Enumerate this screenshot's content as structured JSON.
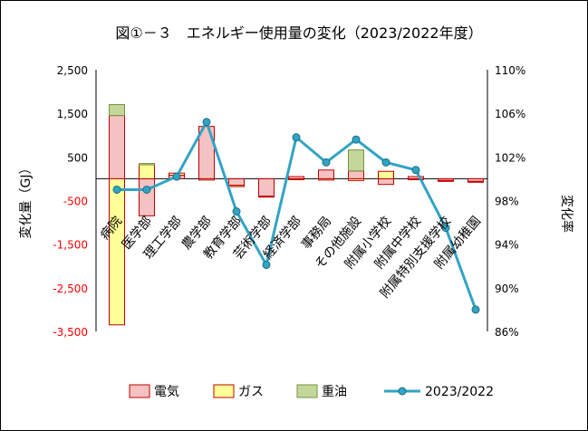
{
  "chart_data": {
    "type": "bar",
    "title": "図①－３　エネルギー使用量の変化（2023/2022年度）",
    "ylabel": "変化量（GJ）",
    "y2label": "変化率",
    "ylim": [
      -3500,
      2500
    ],
    "yticks": [
      "2,500",
      "1,500",
      "500",
      "-500",
      "-1,500",
      "-2,500",
      "-3,500"
    ],
    "ytick_values": [
      2500,
      1500,
      500,
      -500,
      -1500,
      -2500,
      -3500
    ],
    "y2lim": [
      86,
      110
    ],
    "y2ticks": [
      "110%",
      "106%",
      "102%",
      "98%",
      "94%",
      "90%",
      "86%"
    ],
    "y2tick_values": [
      110,
      106,
      102,
      98,
      94,
      90,
      86
    ],
    "categories": [
      "病院",
      "医学部",
      "理工学部",
      "農学部",
      "教育学部",
      "芸術学部",
      "経済学部",
      "事務局",
      "その他施設",
      "附属小学校",
      "附属中学校",
      "附属特別支援学校",
      "附属幼稚園"
    ],
    "series": [
      {
        "name": "電気",
        "kind": "bar",
        "color": "#f4c2c2",
        "edge": "#c00000",
        "values": [
          1450,
          -850,
          80,
          1200,
          -150,
          -400,
          50,
          200,
          180,
          -130,
          50,
          -40,
          -60
        ]
      },
      {
        "name": "ガス",
        "kind": "bar",
        "color": "#ffff99",
        "edge": "#c00000",
        "values": [
          -3350,
          320,
          50,
          -30,
          -30,
          -20,
          -20,
          -30,
          -40,
          170,
          -20,
          -20,
          -20
        ]
      },
      {
        "name": "重油",
        "kind": "bar",
        "color": "#c4d79b",
        "edge": "#76933c",
        "values": [
          250,
          30,
          0,
          0,
          0,
          0,
          0,
          0,
          480,
          0,
          0,
          0,
          0
        ]
      },
      {
        "name": "2023/2022",
        "kind": "line",
        "axis": "right",
        "color": "#31a4c4",
        "values": [
          99.0,
          99.0,
          100.2,
          105.2,
          97.0,
          92.1,
          103.8,
          101.5,
          103.6,
          101.5,
          100.8,
          95.5,
          88.0
        ]
      }
    ],
    "legend_position": "bottom",
    "grid": false
  }
}
